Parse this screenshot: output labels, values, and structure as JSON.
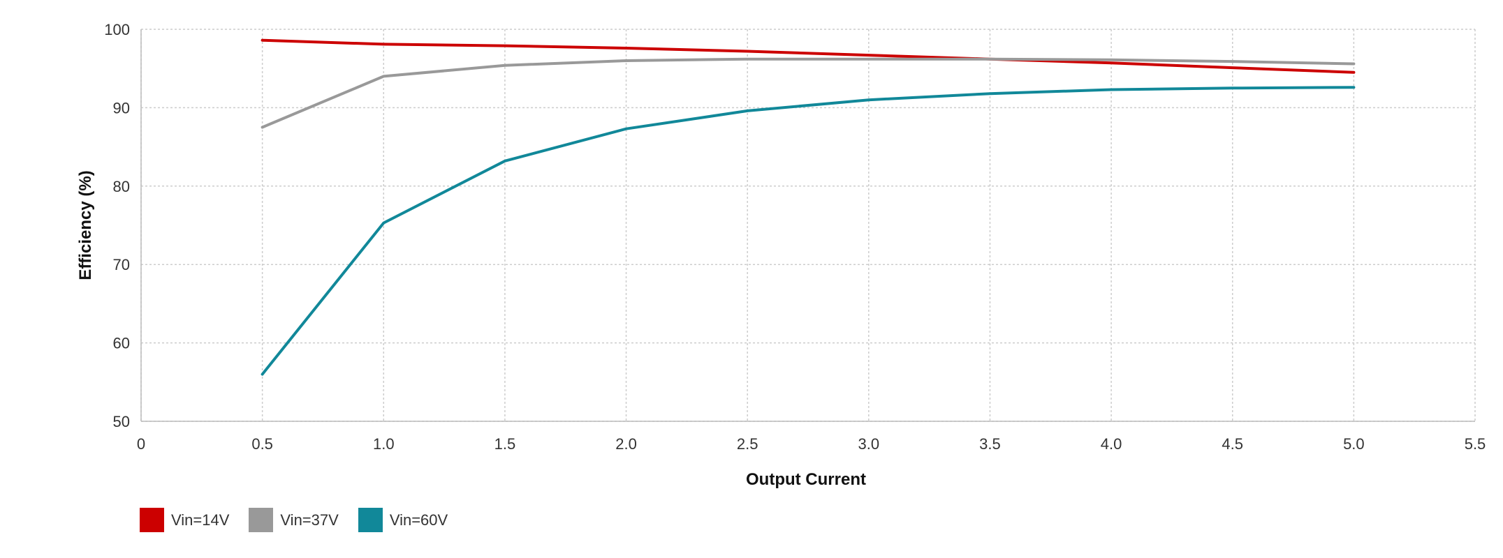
{
  "chart_data": {
    "type": "line",
    "xlabel": "Output Current",
    "ylabel": "Efficiency (%)",
    "xlim": [
      0,
      5.5
    ],
    "ylim": [
      50,
      100
    ],
    "xticks": [
      "0",
      "0.5",
      "1.0",
      "1.5",
      "2.0",
      "2.5",
      "3.0",
      "3.5",
      "4.0",
      "4.5",
      "5.0",
      "5.5"
    ],
    "yticks": [
      "50",
      "60",
      "70",
      "80",
      "90",
      "100"
    ],
    "grid": true,
    "legend_position": "bottom-left",
    "x": [
      0.5,
      1.0,
      1.5,
      2.0,
      2.5,
      3.0,
      3.5,
      4.0,
      4.5,
      5.0
    ],
    "series": [
      {
        "name": "Vin=14V",
        "color": "#cc0000",
        "values": [
          98.6,
          98.1,
          97.9,
          97.6,
          97.2,
          96.7,
          96.2,
          95.7,
          95.1,
          94.5
        ]
      },
      {
        "name": "Vin=37V",
        "color": "#999999",
        "values": [
          87.5,
          94.0,
          95.4,
          96.0,
          96.2,
          96.2,
          96.2,
          96.1,
          95.9,
          95.6
        ]
      },
      {
        "name": "Vin=60V",
        "color": "#118899",
        "values": [
          56.0,
          75.3,
          83.2,
          87.3,
          89.6,
          91.0,
          91.8,
          92.3,
          92.5,
          92.6
        ]
      }
    ]
  }
}
